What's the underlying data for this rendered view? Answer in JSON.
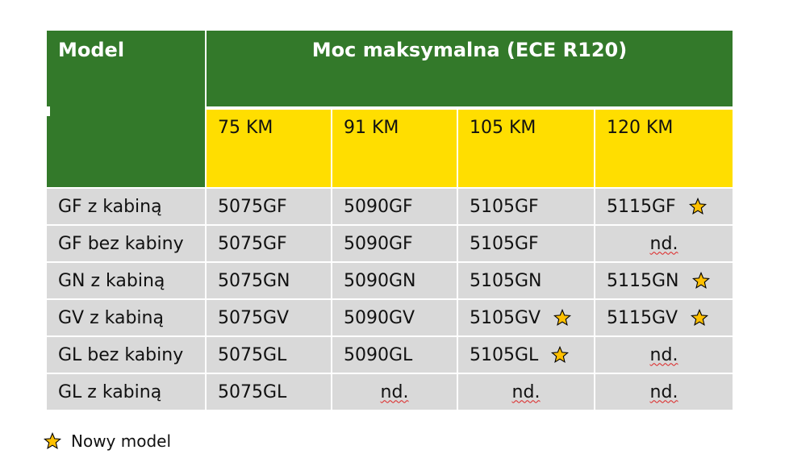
{
  "header": {
    "model": "Model",
    "power": "Moc maksymalna (ECE R120)",
    "km": [
      "75 KM",
      "91 KM",
      "105 KM",
      "120 KM"
    ]
  },
  "rows": [
    {
      "label": "GF z kabiną",
      "cells": [
        {
          "text": "5075GF",
          "star": false
        },
        {
          "text": "5090GF",
          "star": false
        },
        {
          "text": "5105GF",
          "star": false
        },
        {
          "text": "5115GF",
          "star": true
        }
      ]
    },
    {
      "label": "GF bez kabiny",
      "cells": [
        {
          "text": "5075GF",
          "star": false
        },
        {
          "text": "5090GF",
          "star": false
        },
        {
          "text": "5105GF",
          "star": false
        },
        {
          "text": "nd.",
          "star": false
        }
      ]
    },
    {
      "label": "GN z kabiną",
      "cells": [
        {
          "text": "5075GN",
          "star": false
        },
        {
          "text": "5090GN",
          "star": false
        },
        {
          "text": "5105GN",
          "star": false
        },
        {
          "text": "5115GN",
          "star": true
        }
      ]
    },
    {
      "label": "GV z kabiną",
      "cells": [
        {
          "text": "5075GV",
          "star": false
        },
        {
          "text": "5090GV",
          "star": false
        },
        {
          "text": "5105GV",
          "star": true
        },
        {
          "text": "5115GV",
          "star": true
        }
      ]
    },
    {
      "label": "GL bez kabiny",
      "cells": [
        {
          "text": "5075GL",
          "star": false
        },
        {
          "text": "5090GL",
          "star": false
        },
        {
          "text": "5105GL",
          "star": true
        },
        {
          "text": "nd.",
          "star": false
        }
      ]
    },
    {
      "label": "GL z kabiną",
      "cells": [
        {
          "text": "5075GL",
          "star": false
        },
        {
          "text": "nd.",
          "star": false
        },
        {
          "text": "nd.",
          "star": false
        },
        {
          "text": "nd.",
          "star": false
        }
      ]
    }
  ],
  "legend": {
    "label": "Nowy model",
    "icon": "star-icon"
  },
  "colors": {
    "header_green": "#33792a",
    "km_yellow": "#ffde00",
    "row_gray": "#d9d9d9",
    "star_fill": "#ffc000"
  }
}
